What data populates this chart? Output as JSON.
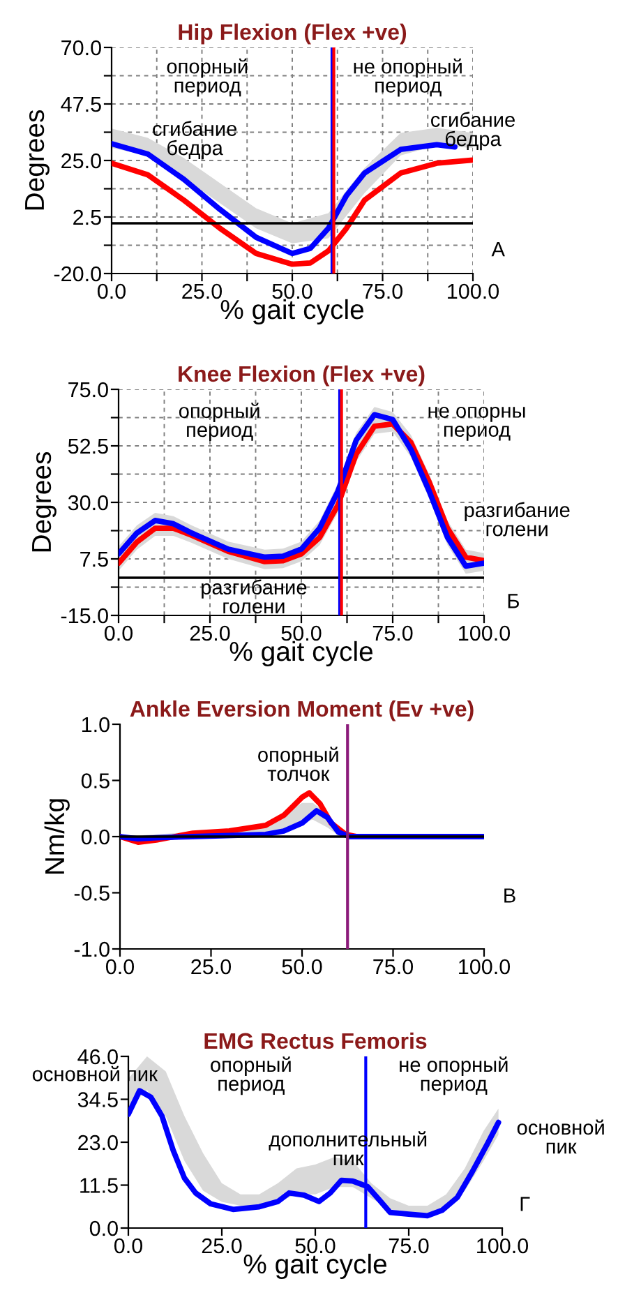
{
  "chart_data": [
    {
      "type": "line",
      "title": "Hip Flexion (Flex +ve)",
      "xlabel": "% gait cycle",
      "ylabel": "Degrees",
      "xlim": [
        0,
        100
      ],
      "ylim": [
        -20,
        70
      ],
      "grid": true,
      "legend": false,
      "xticks": [
        {
          "value": 0,
          "label": "0.0"
        },
        {
          "value": 12.5,
          "label": null
        },
        {
          "value": 25,
          "label": "25.0"
        },
        {
          "value": 37.5,
          "label": null
        },
        {
          "value": 50,
          "label": "50.0"
        },
        {
          "value": 62.5,
          "label": null
        },
        {
          "value": 75,
          "label": "75.0"
        },
        {
          "value": 87.5,
          "label": null
        },
        {
          "value": 100,
          "label": "100.0"
        }
      ],
      "yticks": [
        {
          "value": -20,
          "label": "-20.0"
        },
        {
          "value": -8.75,
          "label": null
        },
        {
          "value": 2.5,
          "label": "2.5"
        },
        {
          "value": 13.75,
          "label": null
        },
        {
          "value": 25,
          "label": "25.0"
        },
        {
          "value": 36.25,
          "label": null
        },
        {
          "value": 47.5,
          "label": "47.5"
        },
        {
          "value": 58.75,
          "label": null
        },
        {
          "value": 70,
          "label": "70.0"
        }
      ],
      "series": [
        {
          "color": "#d9d9d9",
          "x": [
            0,
            10,
            20,
            30,
            40,
            50,
            60,
            70,
            80,
            90,
            100
          ],
          "values": [
            null,
            null,
            null,
            null,
            null,
            null,
            null,
            null,
            null,
            null,
            null
          ],
          "upper": [
            37.7,
            34,
            26,
            16,
            6,
            0,
            4,
            22,
            36,
            38,
            36
          ],
          "lower": [
            30,
            27,
            18,
            8,
            -2,
            -8,
            -6,
            12,
            27,
            31,
            30
          ]
        },
        {
          "color": "#ff0000",
          "x": [
            0,
            10,
            20,
            30,
            40,
            50,
            55,
            60,
            65,
            70,
            80,
            90,
            100
          ],
          "values": [
            23.9,
            19.3,
            9.2,
            -2,
            -12,
            -16.3,
            -15.8,
            -11,
            -2,
            9.2,
            20,
            23.9,
            25.2
          ]
        },
        {
          "color": "#0000ff",
          "x": [
            0,
            10,
            20,
            30,
            40,
            50,
            55,
            60,
            65,
            70,
            80,
            90,
            95
          ],
          "values": [
            31.7,
            27.6,
            17.5,
            5.5,
            -5.6,
            -12,
            -10,
            -2,
            11,
            20,
            29.4,
            31.3,
            30.4
          ]
        }
      ],
      "ref_lines": [
        {
          "axis": "y",
          "value": 0,
          "color": "#000000"
        },
        {
          "axis": "x",
          "value": 61,
          "color": "#0000ff"
        },
        {
          "axis": "x",
          "value": 61.5,
          "color": "#ff0000"
        }
      ],
      "annotations": [
        "опорный\nпериод",
        "не опорный\nпериод",
        "сгибание\nбедра",
        "сгибание\nбедра",
        "А"
      ]
    },
    {
      "type": "line",
      "title": "Knee Flexion (Flex +ve)",
      "xlabel": "% gait cycle",
      "ylabel": "Degrees",
      "xlim": [
        0,
        100
      ],
      "ylim": [
        -15,
        75
      ],
      "grid": true,
      "legend": false,
      "xticks": [
        {
          "value": 0,
          "label": "0.0"
        },
        {
          "value": 12.5,
          "label": null
        },
        {
          "value": 25,
          "label": "25.0"
        },
        {
          "value": 37.5,
          "label": null
        },
        {
          "value": 50,
          "label": "50.0"
        },
        {
          "value": 62.5,
          "label": null
        },
        {
          "value": 75,
          "label": "75.0"
        },
        {
          "value": 87.5,
          "label": null
        },
        {
          "value": 100,
          "label": "100.0"
        }
      ],
      "yticks": [
        {
          "value": -15,
          "label": "-15.0"
        },
        {
          "value": -3.75,
          "label": null
        },
        {
          "value": 7.5,
          "label": "7.5"
        },
        {
          "value": 18.75,
          "label": null
        },
        {
          "value": 30,
          "label": "30.0"
        },
        {
          "value": 41.25,
          "label": null
        },
        {
          "value": 52.5,
          "label": "52.5"
        },
        {
          "value": 63.75,
          "label": null
        },
        {
          "value": 75,
          "label": "75.0"
        }
      ],
      "series": [
        {
          "color": "#d9d9d9",
          "x": [
            0,
            5,
            10,
            15,
            20,
            30,
            40,
            45,
            50,
            55,
            60,
            65,
            70,
            75,
            80,
            85,
            90,
            95,
            100
          ],
          "values": [
            null,
            null,
            null,
            null,
            null,
            null,
            null,
            null,
            null,
            null,
            null,
            null,
            null,
            null,
            null,
            null,
            null,
            null,
            null
          ],
          "upper": [
            12.5,
            20.8,
            25.8,
            24.5,
            20.8,
            14.4,
            11.2,
            11.6,
            14.4,
            22.7,
            37.4,
            57.7,
            68,
            66,
            56.8,
            41.1,
            22.7,
            11.2,
            9.8
          ],
          "lower": [
            2.8,
            11.2,
            16.7,
            16.7,
            13.9,
            7.5,
            3.4,
            3.8,
            6.5,
            13,
            25.9,
            46.2,
            57.3,
            58.2,
            48,
            31.4,
            13,
            1.6,
            2.8
          ]
        },
        {
          "color": "#ff0000",
          "x": [
            0,
            5,
            10,
            15,
            20,
            30,
            40,
            45,
            50,
            55,
            60,
            65,
            70,
            75,
            80,
            85,
            90,
            95,
            100
          ],
          "values": [
            5.8,
            14.2,
            19.7,
            19.7,
            16.9,
            10.5,
            6.4,
            6.8,
            9.5,
            16,
            28.9,
            49.2,
            60.3,
            61.2,
            53.8,
            38.1,
            19.7,
            8.2,
            6.8
          ]
        },
        {
          "color": "#0000ff",
          "x": [
            0,
            5,
            10,
            15,
            20,
            30,
            40,
            45,
            50,
            55,
            60,
            65,
            70,
            75,
            80,
            85,
            90,
            95,
            100
          ],
          "values": [
            9.5,
            17.8,
            22.8,
            21.5,
            17.8,
            11.4,
            8.2,
            8.6,
            11.4,
            19.7,
            34.4,
            54.7,
            64.9,
            63,
            51,
            34.4,
            16,
            4.6,
            5.8
          ]
        }
      ],
      "ref_lines": [
        {
          "axis": "y",
          "value": 0,
          "color": "#000000"
        },
        {
          "axis": "x",
          "value": 60.5,
          "color": "#0000ff"
        },
        {
          "axis": "x",
          "value": 61,
          "color": "#ff0000"
        }
      ],
      "annotations": [
        "опорный\nпериод",
        "не опорны\nпериод",
        "разгибание\nголени",
        "разгибание\nголени",
        "Б"
      ]
    },
    {
      "type": "line",
      "title": "Ankle Eversion Moment (Ev +ve)",
      "ylabel": "Nm/kg",
      "xlim": [
        0,
        100
      ],
      "ylim": [
        -1,
        1
      ],
      "legend": false,
      "xticks": [
        {
          "value": 0,
          "label": "0.0"
        },
        {
          "value": 25,
          "label": "25.0"
        },
        {
          "value": 50,
          "label": "50.0"
        },
        {
          "value": 75,
          "label": "75.0"
        },
        {
          "value": 100,
          "label": "100.0"
        }
      ],
      "yticks": [
        {
          "value": -1,
          "label": "-1.0"
        },
        {
          "value": -0.5,
          "label": "-0.5"
        },
        {
          "value": 0,
          "label": "0.0"
        },
        {
          "value": 0.5,
          "label": "0.5"
        },
        {
          "value": 1,
          "label": "1.0"
        }
      ],
      "series": [
        {
          "color": "#d9d9d9",
          "x": [
            0,
            40,
            45,
            50,
            53,
            57,
            60,
            63,
            100
          ],
          "values": [
            null,
            null,
            null,
            null,
            null,
            null,
            null,
            null,
            null
          ],
          "upper": [
            0,
            0.08,
            0.2,
            0.3,
            0.3,
            0.2,
            0.08,
            0,
            0
          ],
          "lower": [
            0,
            0.02,
            0.06,
            0.13,
            0.15,
            0.08,
            0.01,
            0,
            0
          ]
        },
        {
          "color": "#ff0000",
          "x": [
            0,
            5,
            10,
            15,
            20,
            30,
            40,
            45,
            50,
            52,
            55,
            58,
            62,
            65,
            100
          ],
          "values": [
            0,
            -0.05,
            -0.03,
            0,
            0.03,
            0.05,
            0.1,
            0.19,
            0.35,
            0.39,
            0.29,
            0.12,
            0.02,
            0,
            0
          ]
        },
        {
          "color": "#0000ff",
          "x": [
            0,
            5,
            10,
            20,
            40,
            45,
            50,
            54,
            57,
            60,
            63,
            100
          ],
          "values": [
            0,
            -0.02,
            -0.01,
            0,
            0.02,
            0.05,
            0.12,
            0.23,
            0.17,
            0.04,
            0,
            0
          ]
        }
      ],
      "ref_lines": [
        {
          "axis": "y",
          "value": 0,
          "color": "#000000"
        },
        {
          "axis": "x",
          "value": 62.5,
          "color": "#8b1a7a"
        }
      ],
      "annotations": [
        "опорный\nтолчок",
        "В"
      ]
    },
    {
      "type": "line",
      "title": "EMG Rectus Femoris",
      "xlabel": "% gait cycle",
      "xlim": [
        0,
        100
      ],
      "ylim": [
        0,
        46
      ],
      "legend": false,
      "xticks": [
        {
          "value": 0,
          "label": "0.0"
        },
        {
          "value": 25,
          "label": "25.0"
        },
        {
          "value": 50,
          "label": "50.0"
        },
        {
          "value": 75,
          "label": "75.0"
        },
        {
          "value": 100,
          "label": "100.0"
        }
      ],
      "yticks": [
        {
          "value": 0,
          "label": "0.0"
        },
        {
          "value": 11.5,
          "label": "11.5"
        },
        {
          "value": 23,
          "label": "23.0"
        },
        {
          "value": 34.5,
          "label": "34.5"
        },
        {
          "value": 46,
          "label": "46.0"
        }
      ],
      "series": [
        {
          "color": "#d9d9d9",
          "x": [
            0,
            5,
            10,
            15,
            20,
            25,
            30,
            35,
            40,
            45,
            50,
            55,
            60,
            65,
            70,
            75,
            80,
            85,
            90,
            95,
            99
          ],
          "values": [
            null,
            null,
            null,
            null,
            null,
            null,
            null,
            null,
            null,
            null,
            null,
            null,
            null,
            null,
            null,
            null,
            null,
            null,
            null,
            null,
            null
          ],
          "upper": [
            40,
            46,
            42,
            30,
            20,
            12,
            9,
            9,
            12,
            16,
            17,
            19,
            18,
            12,
            8,
            6,
            6,
            9,
            16,
            26,
            32
          ],
          "lower": [
            32,
            37,
            30,
            18,
            10,
            7,
            6,
            6,
            7,
            9,
            9,
            11,
            11,
            8,
            5,
            4,
            4,
            5,
            10,
            18,
            25
          ]
        },
        {
          "color": "#0000ff",
          "x": [
            0,
            3,
            6,
            9,
            12,
            15,
            18,
            22,
            28,
            35,
            40,
            43,
            47,
            51,
            54,
            57,
            60,
            64,
            67,
            70,
            75,
            80,
            84,
            88,
            92,
            96,
            99
          ],
          "values": [
            30.5,
            36.8,
            35.1,
            30,
            20.8,
            13.4,
            9.4,
            6.5,
            5,
            5.7,
            7.1,
            9.4,
            8.8,
            7.1,
            9.4,
            12.8,
            12.6,
            11.1,
            7.7,
            4.2,
            3.7,
            3.3,
            4.8,
            8.2,
            15.1,
            22.5,
            28.3
          ]
        }
      ],
      "ref_lines": [
        {
          "axis": "x",
          "value": 63.5,
          "color": "#0000ff"
        }
      ],
      "annotations": [
        "основной пик",
        "опорный\nпериод",
        "не опорный\nпериод",
        "дополнительный\nпик",
        "основной\nпик",
        "Г"
      ]
    }
  ]
}
